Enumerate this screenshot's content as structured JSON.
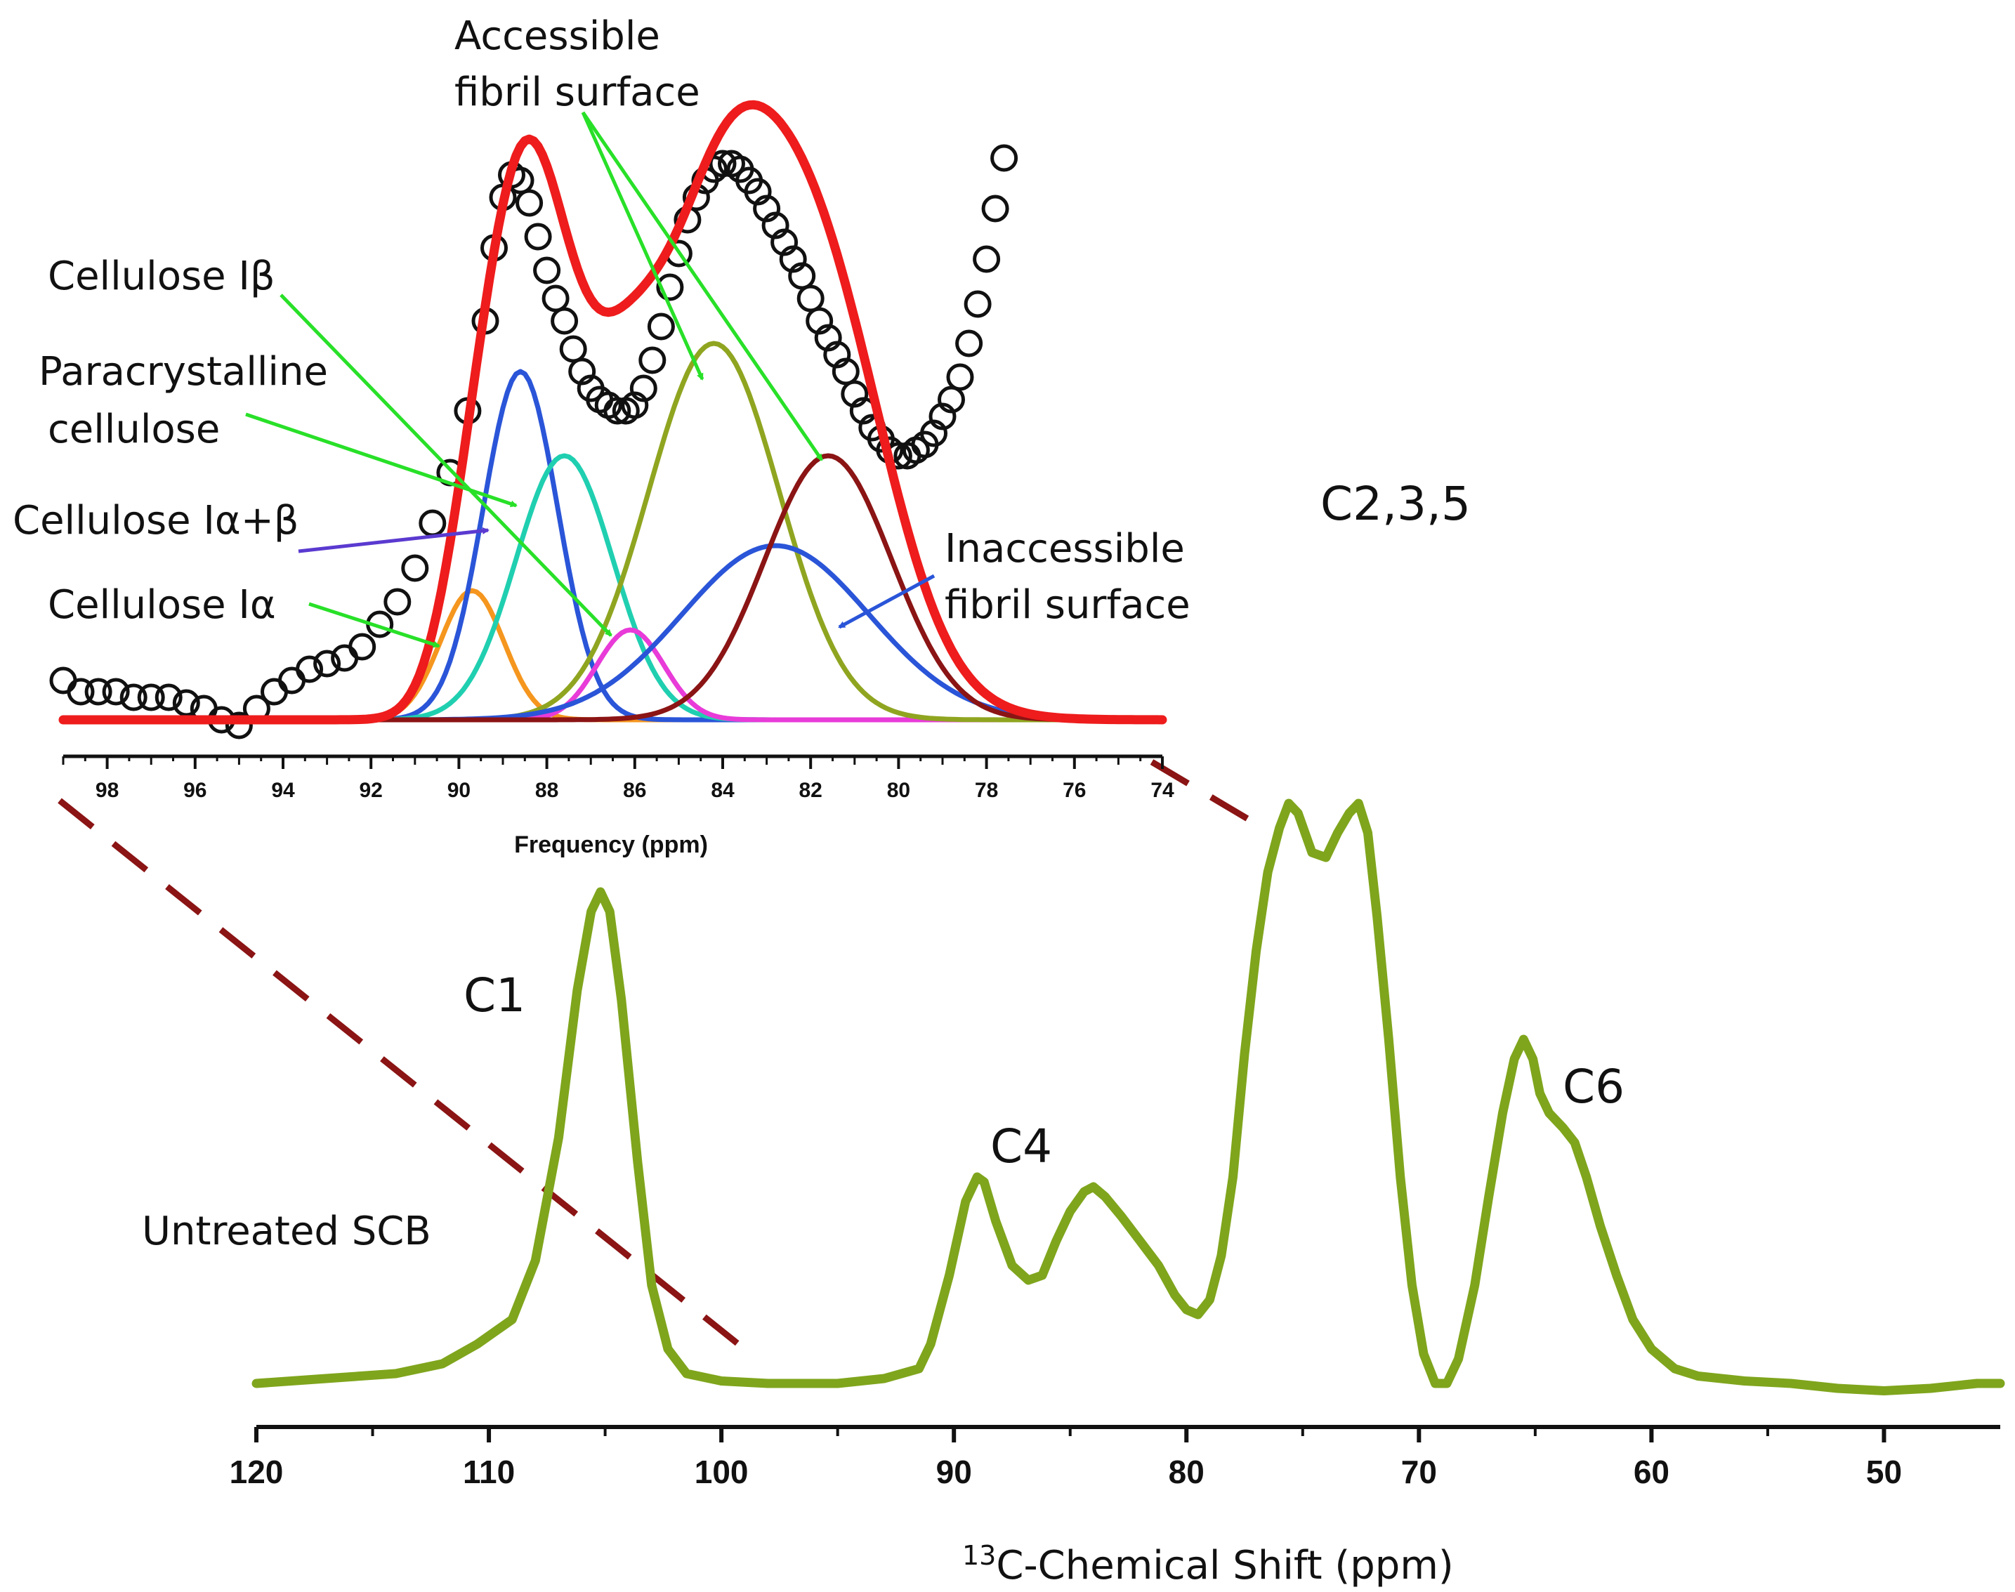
{
  "chart_data": [
    {
      "type": "line",
      "name": "main_spectrum",
      "title": "",
      "xlabel_sup": "13",
      "xlabel_rest": "C-Chemical Shift (ppm)",
      "ylabel": "",
      "xlim": [
        120,
        45
      ],
      "x_ticks": [
        120,
        110,
        100,
        90,
        80,
        70,
        60,
        50
      ],
      "x_tick_labels": [
        "120",
        "110",
        "100",
        "90",
        "80",
        "70",
        "60",
        "50"
      ],
      "series": [
        {
          "name": "Untreated SCB",
          "color": "#7fa51c",
          "x": [
            120,
            117,
            114,
            112,
            110.5,
            109,
            108,
            107,
            106.2,
            105.6,
            105.2,
            104.8,
            104.3,
            103.6,
            103,
            102.3,
            101.5,
            100,
            98,
            95,
            93,
            91.5,
            91,
            90.2,
            89.5,
            89,
            88.7,
            88.2,
            87.5,
            86.8,
            86.2,
            85.6,
            85,
            84.4,
            84,
            83.5,
            82.8,
            82,
            81.2,
            80.5,
            80,
            79.5,
            79,
            78.5,
            78,
            77.5,
            77,
            76.5,
            76,
            75.6,
            75.2,
            74.6,
            74,
            73.5,
            73,
            72.6,
            72.2,
            71.8,
            71.3,
            70.8,
            70.3,
            69.8,
            69.3,
            68.8,
            68.3,
            67.6,
            67,
            66.4,
            65.9,
            65.5,
            65.1,
            64.8,
            64.4,
            63.8,
            63.3,
            62.8,
            62.2,
            61.5,
            60.8,
            60,
            59,
            58,
            56,
            54,
            52,
            50,
            48,
            46,
            45
          ],
          "y": [
            0.0,
            0.01,
            0.02,
            0.04,
            0.08,
            0.13,
            0.25,
            0.5,
            0.8,
            0.96,
            1.0,
            0.96,
            0.78,
            0.45,
            0.2,
            0.07,
            0.02,
            0.005,
            0.0,
            0.0,
            0.01,
            0.03,
            0.08,
            0.22,
            0.37,
            0.42,
            0.41,
            0.33,
            0.24,
            0.21,
            0.22,
            0.29,
            0.35,
            0.39,
            0.4,
            0.38,
            0.34,
            0.29,
            0.24,
            0.18,
            0.15,
            0.14,
            0.17,
            0.26,
            0.42,
            0.67,
            0.88,
            1.04,
            1.13,
            1.18,
            1.16,
            1.08,
            1.07,
            1.12,
            1.16,
            1.18,
            1.12,
            0.95,
            0.7,
            0.42,
            0.2,
            0.06,
            0.0,
            0.0,
            0.05,
            0.2,
            0.38,
            0.55,
            0.66,
            0.7,
            0.66,
            0.59,
            0.55,
            0.52,
            0.49,
            0.42,
            0.32,
            0.22,
            0.13,
            0.07,
            0.03,
            0.015,
            0.005,
            0.0,
            -0.01,
            -0.015,
            -0.01,
            0.0,
            0.0
          ]
        }
      ],
      "annotations": [
        "C1",
        "C4",
        "C2,3,5",
        "C6",
        "Untreated SCB"
      ]
    },
    {
      "type": "line",
      "name": "inset_deconvolution",
      "title": "",
      "xlabel": "Frequency (ppm)",
      "ylabel": "",
      "xlim": [
        99,
        74
      ],
      "x_ticks": [
        98,
        96,
        94,
        92,
        90,
        88,
        86,
        84,
        82,
        80,
        78,
        76,
        74
      ],
      "x_tick_labels": [
        "98",
        "96",
        "94",
        "92",
        "90",
        "88",
        "86",
        "84",
        "82",
        "80",
        "78",
        "76",
        "74"
      ],
      "experimental": {
        "name": "Experimental (circles)",
        "x": [
          99.0,
          98.6,
          98.2,
          97.8,
          97.4,
          97.0,
          96.6,
          96.2,
          95.8,
          95.4,
          95.0,
          94.6,
          94.2,
          93.8,
          93.4,
          93.0,
          92.6,
          92.2,
          91.8,
          91.4,
          91.0,
          90.6,
          90.2,
          89.8,
          89.4,
          89.2,
          89.0,
          88.8,
          88.6,
          88.4,
          88.2,
          88.0,
          87.8,
          87.6,
          87.4,
          87.2,
          87.0,
          86.8,
          86.6,
          86.4,
          86.2,
          86.0,
          85.8,
          85.6,
          85.4,
          85.2,
          85.0,
          84.8,
          84.6,
          84.4,
          84.2,
          84.0,
          83.8,
          83.6,
          83.4,
          83.2,
          83.0,
          82.8,
          82.6,
          82.4,
          82.2,
          82.0,
          81.8,
          81.6,
          81.4,
          81.2,
          81.0,
          80.8,
          80.6,
          80.4,
          80.2,
          80.0,
          79.8,
          79.6,
          79.4,
          79.2,
          79.0,
          78.8,
          78.6,
          78.4,
          78.2,
          78.0,
          77.8,
          77.6
        ],
        "y": [
          0.07,
          0.05,
          0.05,
          0.05,
          0.04,
          0.04,
          0.04,
          0.03,
          0.02,
          0.0,
          -0.01,
          0.02,
          0.05,
          0.07,
          0.09,
          0.1,
          0.11,
          0.13,
          0.17,
          0.21,
          0.27,
          0.35,
          0.44,
          0.55,
          0.71,
          0.84,
          0.93,
          0.97,
          0.96,
          0.92,
          0.86,
          0.8,
          0.75,
          0.71,
          0.66,
          0.62,
          0.59,
          0.57,
          0.56,
          0.55,
          0.55,
          0.56,
          0.59,
          0.64,
          0.7,
          0.77,
          0.83,
          0.89,
          0.93,
          0.96,
          0.98,
          0.99,
          0.99,
          0.98,
          0.96,
          0.94,
          0.91,
          0.88,
          0.85,
          0.82,
          0.79,
          0.75,
          0.71,
          0.68,
          0.65,
          0.62,
          0.58,
          0.55,
          0.52,
          0.5,
          0.48,
          0.47,
          0.47,
          0.48,
          0.49,
          0.51,
          0.54,
          0.57,
          0.61,
          0.67,
          0.74,
          0.82,
          0.91,
          1.0
        ]
      },
      "components": [
        {
          "name": "Cellulose Iα",
          "color": "#f5961e",
          "center": 89.7,
          "fwhm": 1.7,
          "height": 0.23
        },
        {
          "name": "Cellulose Iα+β",
          "color": "#2a55d8",
          "center": 88.6,
          "fwhm": 2.0,
          "height": 0.62
        },
        {
          "name": "Paracrystalline cellulose",
          "color": "#1fcfb0",
          "center": 87.6,
          "fwhm": 2.6,
          "height": 0.47
        },
        {
          "name": "Cellulose Iβ",
          "color": "#e83bd8",
          "center": 86.1,
          "fwhm": 1.8,
          "height": 0.16
        },
        {
          "name": "Accessible fibril surface (1)",
          "color": "#8fa520",
          "center": 84.2,
          "fwhm": 3.5,
          "height": 0.67
        },
        {
          "name": "Inaccessible fibril surface",
          "color": "#2a55d8",
          "center": 82.8,
          "fwhm": 5.0,
          "height": 0.31
        },
        {
          "name": "Accessible fibril surface (2)",
          "color": "#8b1414",
          "center": 81.6,
          "fwhm": 3.4,
          "height": 0.47
        }
      ],
      "fit": {
        "name": "Total fit",
        "color": "#ee1c1c"
      }
    }
  ],
  "labels": {
    "peak_c1": "C1",
    "peak_c4": "C4",
    "peak_c235": "C2,3,5",
    "peak_c6": "C6",
    "sample": "Untreated SCB",
    "ann_ib": "Cellulose Iβ",
    "ann_para_1": "Paracrystalline",
    "ann_para_2": "cellulose",
    "ann_iab": "Cellulose Iα+β",
    "ann_ia": "Cellulose Iα",
    "ann_acc_1": "Accessible",
    "ann_acc_2": "fibril surface",
    "ann_inacc_1": "Inaccessible",
    "ann_inacc_2": "fibril surface"
  },
  "colors": {
    "main_line": "#7fa51c",
    "fit": "#ee1c1c",
    "arrow_green": "#28e028",
    "arrow_blue": "#2a55d8",
    "arrow_purple": "#5a3ad0",
    "dashed": "#8b1414"
  }
}
